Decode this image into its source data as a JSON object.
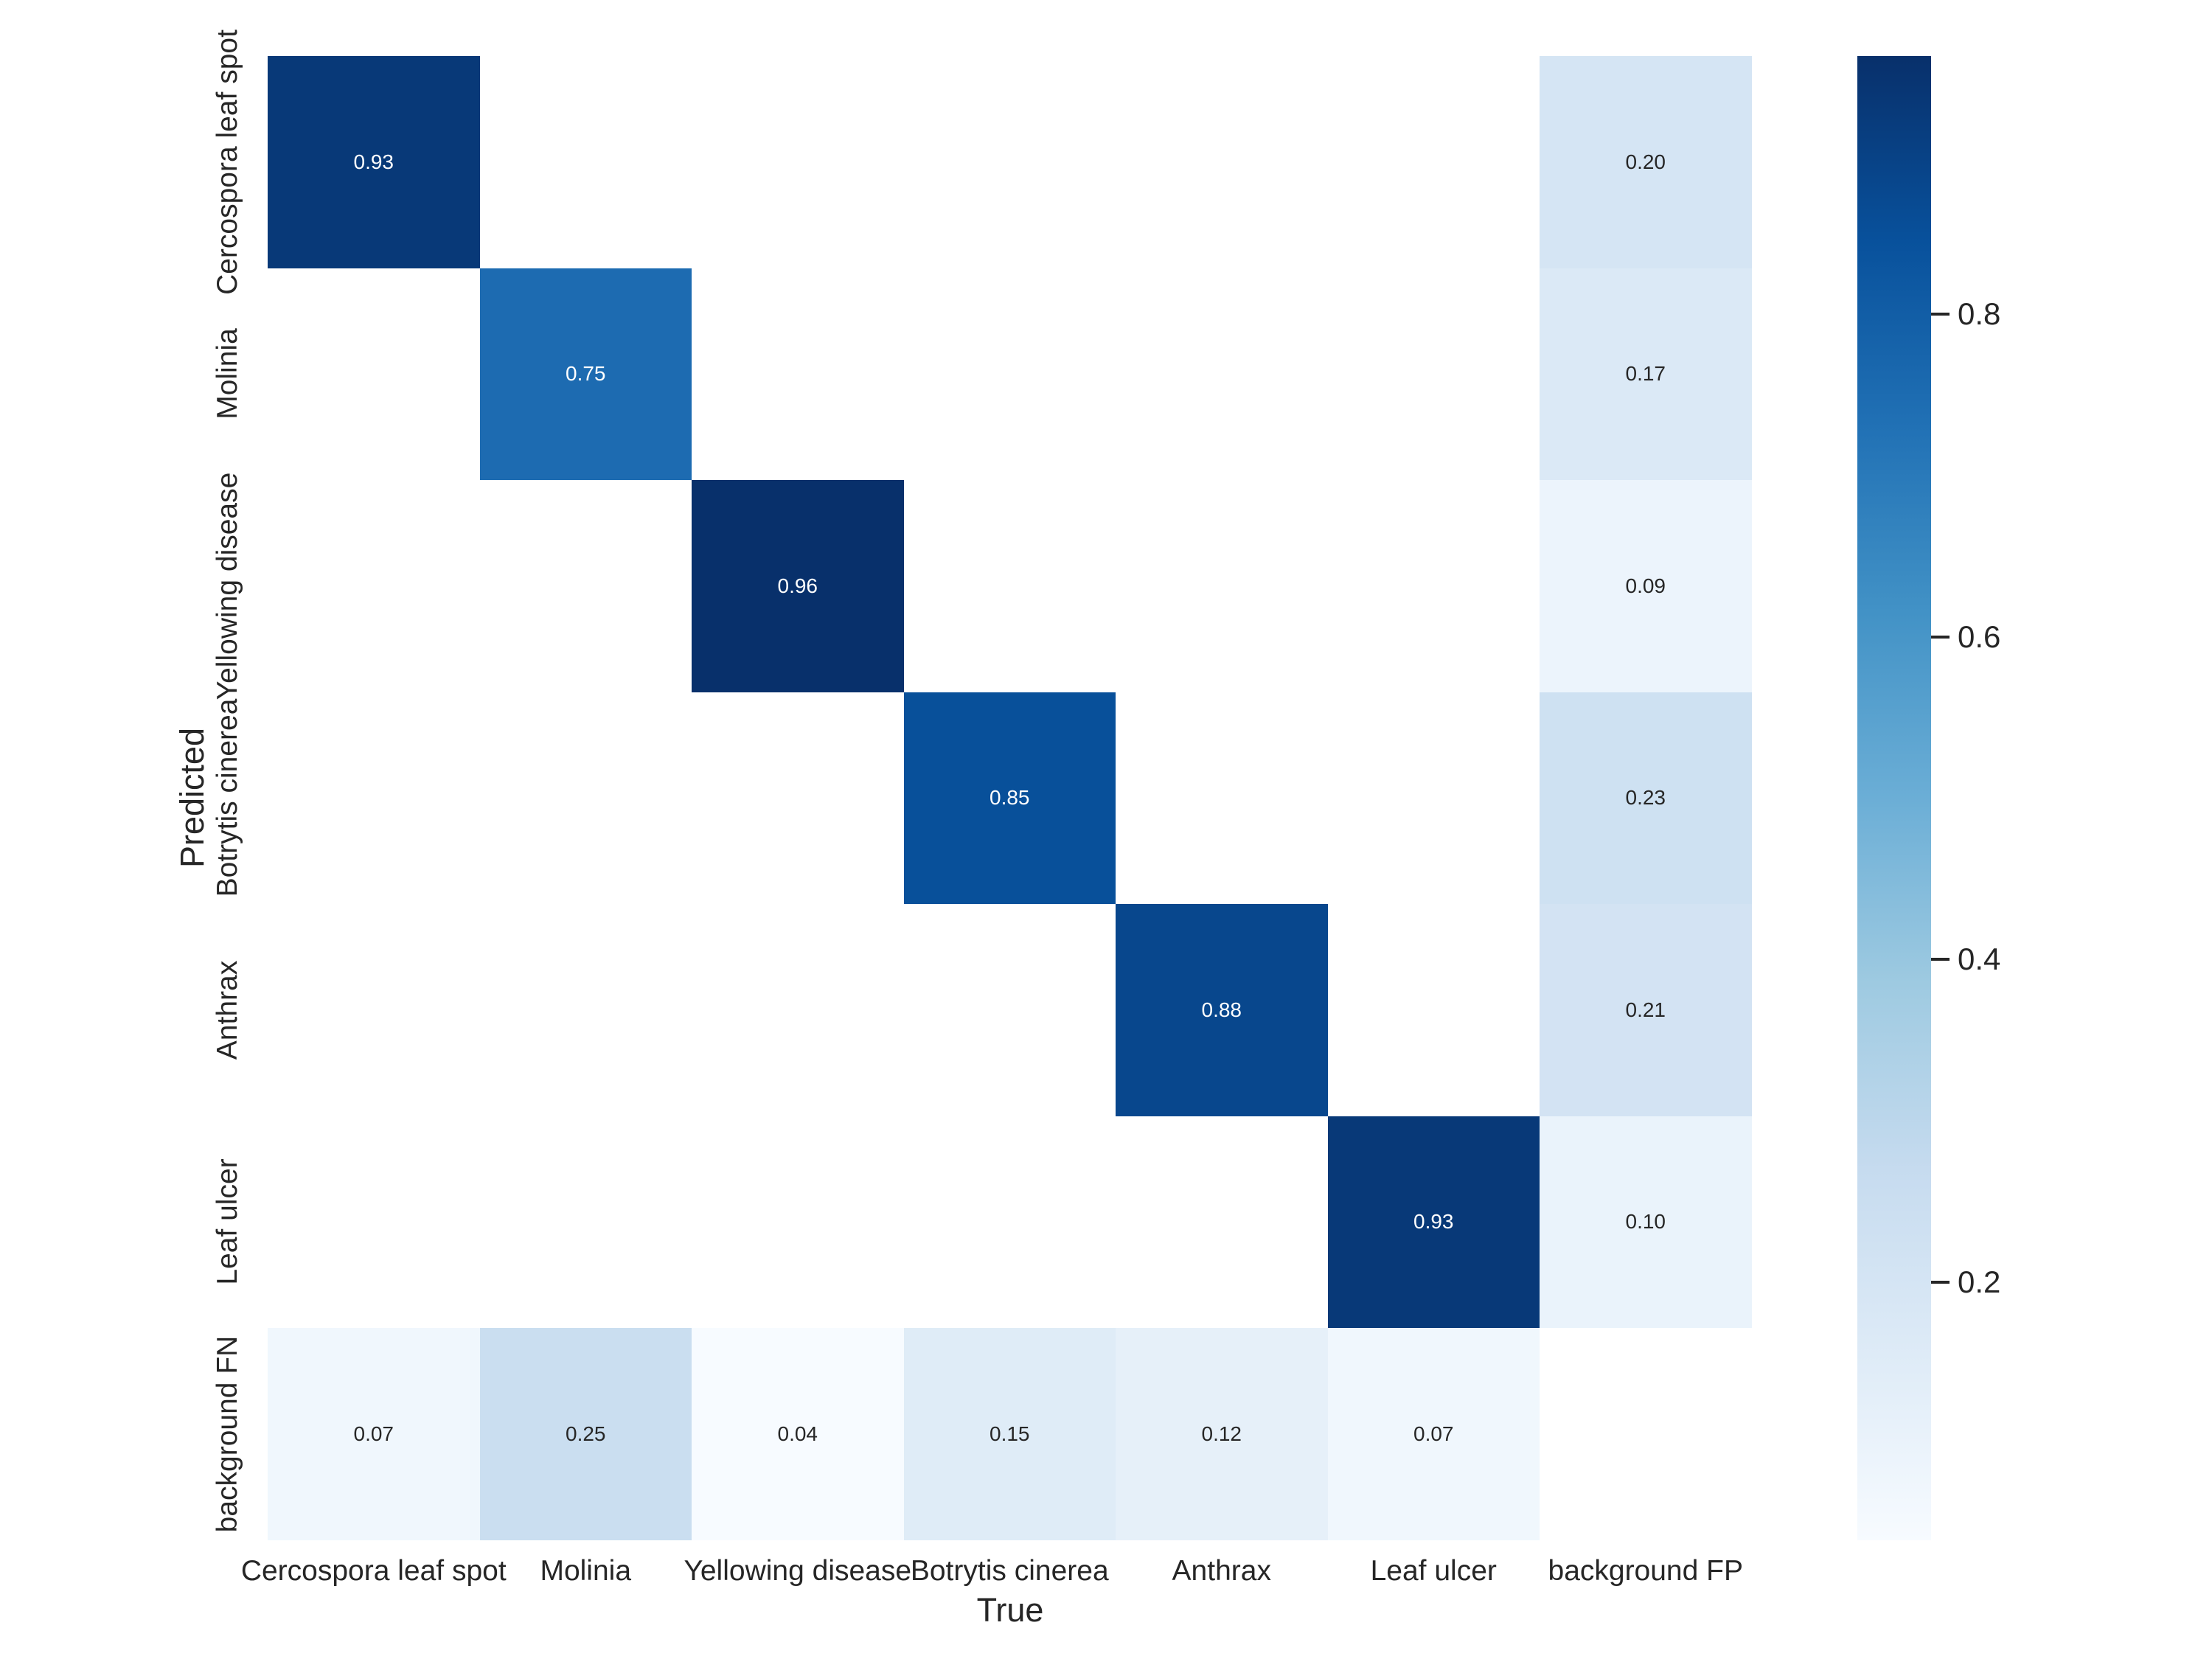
{
  "chart_data": {
    "type": "heatmap",
    "title": "",
    "xlabel": "True",
    "ylabel": "Predicted",
    "x_categories": [
      "Cercospora leaf spot",
      "Molinia",
      "Yellowing disease",
      "Botrytis cinerea",
      "Anthrax",
      "Leaf ulcer",
      "background FP"
    ],
    "y_categories": [
      "Cercospora leaf spot",
      "Molinia",
      "Yellowing disease",
      "Botrytis cinerea",
      "Anthrax",
      "Leaf ulcer",
      "background FN"
    ],
    "matrix": [
      [
        0.93,
        null,
        null,
        null,
        null,
        null,
        0.2
      ],
      [
        null,
        0.75,
        null,
        null,
        null,
        null,
        0.17
      ],
      [
        null,
        null,
        0.96,
        null,
        null,
        null,
        0.09
      ],
      [
        null,
        null,
        null,
        0.85,
        null,
        null,
        0.23
      ],
      [
        null,
        null,
        null,
        null,
        0.88,
        null,
        0.21
      ],
      [
        null,
        null,
        null,
        null,
        null,
        0.93,
        0.1
      ],
      [
        0.07,
        0.25,
        0.04,
        0.15,
        0.12,
        0.07,
        null
      ]
    ],
    "value_decimals": 2,
    "empty_cell_color": "#ffffff",
    "colormap": {
      "name": "Blues",
      "vmin": 0.04,
      "vmax": 0.96,
      "anchors": [
        "#f7fbff",
        "#deebf7",
        "#c6dbef",
        "#9ecae1",
        "#6baed6",
        "#4292c6",
        "#2171b5",
        "#08519c",
        "#08306b"
      ]
    },
    "colorbar": {
      "position": "right",
      "ticks": [
        0.2,
        0.4,
        0.6,
        0.8
      ],
      "tick_labels": [
        "0.2",
        "0.4",
        "0.6",
        "0.8"
      ]
    },
    "annotation_color_on_dark": "#ffffff",
    "annotation_color_on_light": "#262626",
    "grid": false
  }
}
